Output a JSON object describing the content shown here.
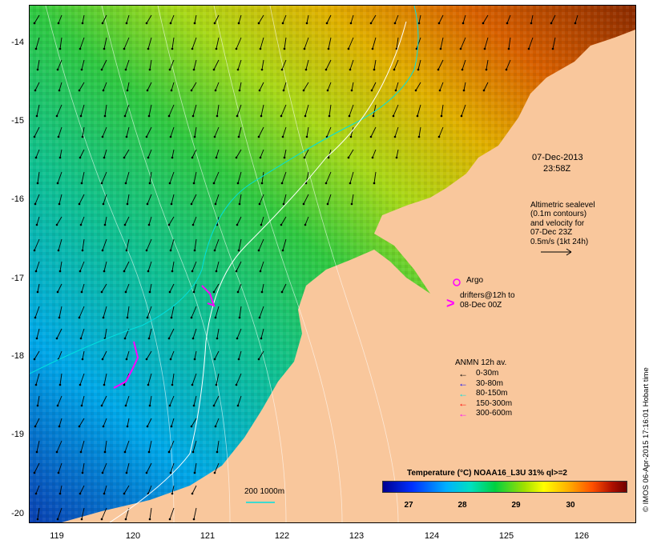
{
  "map": {
    "date": "07-Dec-2013",
    "time": "23:58Z",
    "altimetry_note": [
      "Altimetric sealevel",
      "(0.1m contours)",
      "and velocity for",
      "07-Dec 23Z",
      "0.5m/s (1kt 24h)"
    ],
    "argo_label": "Argo",
    "drifters_label": [
      "drifters@12h to",
      "08-Dec 00Z"
    ],
    "anmn_title": "ANMN 12h av.",
    "anmn_legend": [
      {
        "label": "0-30m",
        "color": "#000000"
      },
      {
        "label": "30-80m",
        "color": "#0000ff"
      },
      {
        "label": "80-150m",
        "color": "#00e0e0"
      },
      {
        "label": "150-300m",
        "color": "#ff0000"
      },
      {
        "label": "300-600m",
        "color": "#ff00ff"
      }
    ],
    "isobath_label": "200  1000m",
    "colorbar_title": "Temperature (°C) NOAA16_L3U 31% ql>=2",
    "colorbar_ticks": [
      "27",
      "28",
      "29",
      "30"
    ],
    "credit": "© IMOS 06-Apr-2015 17:16:01 Hobart time",
    "y_ticks": [
      "-14",
      "-15",
      "-16",
      "-17",
      "-18",
      "-19",
      "-20"
    ],
    "x_ticks": [
      "119",
      "120",
      "121",
      "122",
      "123",
      "124",
      "125",
      "126"
    ],
    "colors": {
      "land": "#f9c79c",
      "argo": "#ff00ff",
      "drifter": "#ff00ff",
      "isobath": "#00e0e0",
      "contour": "#ffffff"
    }
  }
}
